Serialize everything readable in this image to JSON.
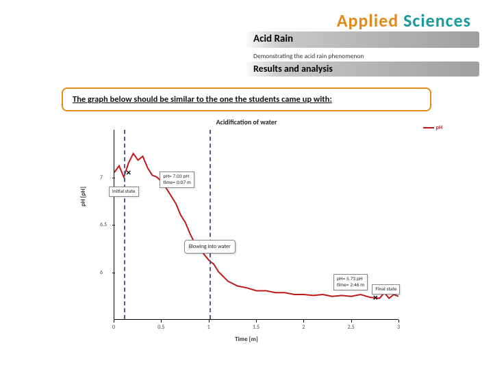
{
  "brand": {
    "word1": "Applied",
    "word2": "Sciences"
  },
  "title": "Acid Rain",
  "subtitle": "Demonstrating the acid rain phenomenon",
  "section": "Results and analysis",
  "intro": "The graph below should be similar to the one the students came up with:",
  "chart": {
    "title": "Acidification of water",
    "type": "line",
    "xlabel": "Time [m]",
    "ylabel": "pH [pH]",
    "xlim": [
      0,
      3
    ],
    "ylim": [
      5.5,
      7.5
    ],
    "xticks": [
      0,
      0.5,
      1,
      1.5,
      2,
      2.5,
      3
    ],
    "xtick_labels": [
      "0",
      "0.5",
      "1",
      "1.5",
      "2",
      "2.5",
      "3"
    ],
    "yticks": [
      6,
      6.5,
      7
    ],
    "ytick_labels": [
      "6",
      "6.5",
      "7"
    ],
    "vlines": [
      0.1,
      1.0
    ],
    "vline_color": "#5a5a8a",
    "line_color": "#c01717",
    "line_width": 2,
    "background_color": "#ffffff",
    "legend_label": "pH",
    "series": [
      {
        "t": 0.0,
        "pH": 7.05
      },
      {
        "t": 0.05,
        "pH": 7.12
      },
      {
        "t": 0.1,
        "pH": 7.0
      },
      {
        "t": 0.15,
        "pH": 7.15
      },
      {
        "t": 0.2,
        "pH": 7.25
      },
      {
        "t": 0.25,
        "pH": 7.18
      },
      {
        "t": 0.3,
        "pH": 7.22
      },
      {
        "t": 0.35,
        "pH": 7.1
      },
      {
        "t": 0.4,
        "pH": 7.02
      },
      {
        "t": 0.45,
        "pH": 7.0
      },
      {
        "t": 0.5,
        "pH": 6.95
      },
      {
        "t": 0.55,
        "pH": 6.88
      },
      {
        "t": 0.6,
        "pH": 6.8
      },
      {
        "t": 0.65,
        "pH": 6.72
      },
      {
        "t": 0.7,
        "pH": 6.6
      },
      {
        "t": 0.75,
        "pH": 6.52
      },
      {
        "t": 0.8,
        "pH": 6.4
      },
      {
        "t": 0.85,
        "pH": 6.3
      },
      {
        "t": 0.9,
        "pH": 6.25
      },
      {
        "t": 0.95,
        "pH": 6.18
      },
      {
        "t": 1.0,
        "pH": 6.12
      },
      {
        "t": 1.05,
        "pH": 6.08
      },
      {
        "t": 1.1,
        "pH": 6.0
      },
      {
        "t": 1.15,
        "pH": 5.95
      },
      {
        "t": 1.2,
        "pH": 5.9
      },
      {
        "t": 1.3,
        "pH": 5.85
      },
      {
        "t": 1.4,
        "pH": 5.83
      },
      {
        "t": 1.5,
        "pH": 5.8
      },
      {
        "t": 1.6,
        "pH": 5.8
      },
      {
        "t": 1.7,
        "pH": 5.78
      },
      {
        "t": 1.8,
        "pH": 5.78
      },
      {
        "t": 1.9,
        "pH": 5.76
      },
      {
        "t": 2.0,
        "pH": 5.76
      },
      {
        "t": 2.1,
        "pH": 5.75
      },
      {
        "t": 2.2,
        "pH": 5.76
      },
      {
        "t": 2.3,
        "pH": 5.74
      },
      {
        "t": 2.4,
        "pH": 5.75
      },
      {
        "t": 2.5,
        "pH": 5.74
      },
      {
        "t": 2.6,
        "pH": 5.76
      },
      {
        "t": 2.7,
        "pH": 5.73
      },
      {
        "t": 2.8,
        "pH": 5.72
      },
      {
        "t": 2.85,
        "pH": 5.78
      },
      {
        "t": 2.9,
        "pH": 5.72
      },
      {
        "t": 2.95,
        "pH": 5.76
      },
      {
        "t": 3.0,
        "pH": 5.74
      }
    ],
    "markers": [
      {
        "t": 0.15,
        "pH": 7.05,
        "label": "×"
      },
      {
        "t": 2.75,
        "pH": 5.73,
        "label": "×"
      }
    ],
    "annotations": {
      "initial_state": {
        "text": "Initial state",
        "t": 0.1,
        "pH": 6.92
      },
      "initial_readout": {
        "line1": "pH= 7.03 pH",
        "line2": "time= 0:07 m",
        "t": 0.45,
        "pH": 7.02
      },
      "blowing": {
        "text": "Blowing into water",
        "t": 0.82,
        "pH": 6.3
      },
      "final_readout": {
        "line1": "pH= 5.73 pH",
        "line2": "time= 2:46 m",
        "t": 2.35,
        "pH": 5.95
      },
      "final_state": {
        "text": "Final state",
        "t": 2.7,
        "pH": 5.86
      }
    }
  }
}
